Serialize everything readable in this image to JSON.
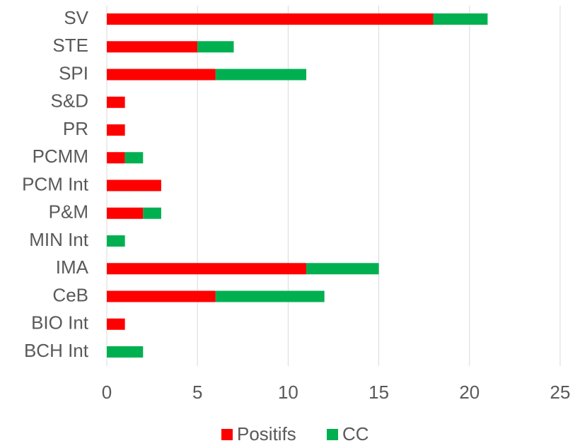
{
  "chart_data": {
    "type": "bar",
    "orientation": "horizontal",
    "stacked": true,
    "categories": [
      "SV",
      "STE",
      "SPI",
      "S&D",
      "PR",
      "PCMM",
      "PCM Int",
      "P&M",
      "MIN Int",
      "IMA",
      "CeB",
      "BIO Int",
      "BCH Int"
    ],
    "series": [
      {
        "name": "Positifs",
        "color": "#ff0000",
        "values": [
          18,
          5,
          6,
          1,
          1,
          1,
          3,
          2,
          0,
          11,
          6,
          1,
          0
        ]
      },
      {
        "name": "CC",
        "color": "#00b050",
        "values": [
          3,
          2,
          5,
          0,
          0,
          1,
          0,
          1,
          1,
          4,
          6,
          0,
          2
        ]
      }
    ],
    "xlim": [
      0,
      25
    ],
    "xticks": [
      0,
      5,
      10,
      15,
      20,
      25
    ],
    "grid": true,
    "legend": "bottom"
  }
}
